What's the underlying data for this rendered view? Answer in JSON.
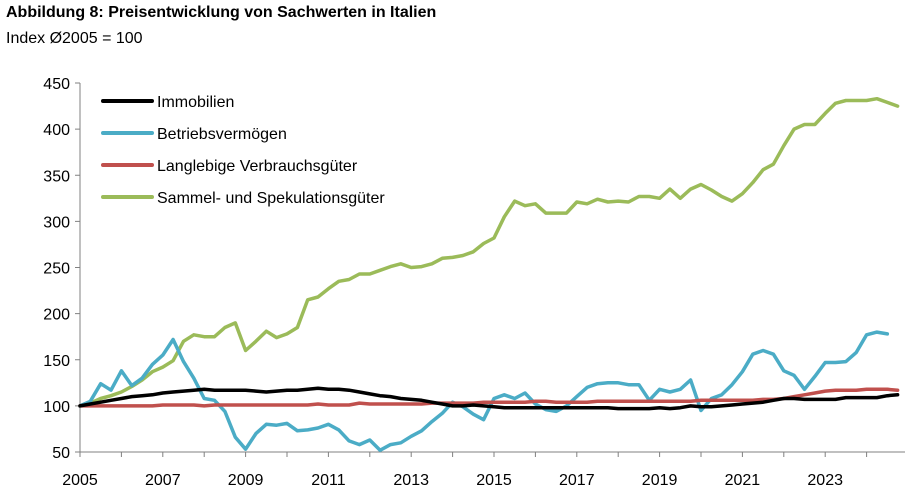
{
  "title": "Abbildung 8: Preisentwicklung von Sachwerten in Italien",
  "subtitle": "Index Ø2005 = 100",
  "chart_data": {
    "type": "line",
    "title": "Abbildung 8: Preisentwicklung von Sachwerten in Italien",
    "subtitle": "Index Ø2005 = 100",
    "xlabel": "",
    "ylabel": "",
    "xlim": [
      2005,
      2024.75
    ],
    "ylim": [
      50,
      450
    ],
    "grid": false,
    "legend_position": "top-left",
    "x_ticks": [
      "2005",
      "2007",
      "2009",
      "2011",
      "2013",
      "2015",
      "2017",
      "2019",
      "2021",
      "2023"
    ],
    "y_ticks": [
      "50",
      "100",
      "150",
      "200",
      "250",
      "300",
      "350",
      "400",
      "450"
    ],
    "x_step": 0.25,
    "series": [
      {
        "name": "Immobilien",
        "color": "#000000",
        "values": [
          100,
          102,
          104,
          106,
          108,
          110,
          111,
          112,
          114,
          115,
          116,
          117,
          118,
          117,
          117,
          117,
          117,
          116,
          115,
          116,
          117,
          117,
          118,
          119,
          118,
          118,
          117,
          115,
          113,
          111,
          110,
          108,
          107,
          106,
          104,
          102,
          100,
          100,
          101,
          100,
          99,
          98,
          98,
          98,
          98,
          98,
          98,
          98,
          98,
          98,
          98,
          98,
          97,
          97,
          97,
          97,
          98,
          97,
          98,
          100,
          99,
          99,
          100,
          101,
          102,
          103,
          104,
          106,
          108,
          108,
          107,
          107,
          107,
          107,
          109,
          109,
          109,
          109,
          111,
          112
        ]
      },
      {
        "name": "Betriebsvermögen",
        "color": "#4bacc6",
        "values": [
          100,
          105,
          124,
          117,
          138,
          122,
          130,
          145,
          155,
          172,
          148,
          130,
          108,
          106,
          94,
          66,
          53,
          70,
          80,
          79,
          81,
          73,
          74,
          76,
          80,
          74,
          62,
          58,
          63,
          52,
          58,
          60,
          67,
          73,
          83,
          92,
          104,
          99,
          91,
          85,
          108,
          112,
          108,
          114,
          102,
          96,
          94,
          100,
          110,
          120,
          124,
          125,
          125,
          123,
          123,
          106,
          118,
          115,
          118,
          128,
          95,
          108,
          112,
          123,
          137,
          156,
          160,
          156,
          138,
          133,
          118,
          132,
          147,
          147,
          148,
          158,
          177,
          180,
          178
        ]
      },
      {
        "name": "Langlebige Verbrauchsgüter",
        "color": "#c0504d",
        "values": [
          100,
          100,
          100,
          100,
          100,
          100,
          100,
          100,
          101,
          101,
          101,
          101,
          100,
          101,
          101,
          101,
          101,
          101,
          101,
          101,
          101,
          101,
          101,
          102,
          101,
          101,
          101,
          103,
          102,
          102,
          102,
          102,
          102,
          102,
          103,
          103,
          103,
          103,
          103,
          104,
          104,
          104,
          104,
          104,
          105,
          105,
          104,
          104,
          104,
          104,
          105,
          105,
          105,
          105,
          105,
          105,
          105,
          105,
          105,
          105,
          106,
          106,
          106,
          106,
          106,
          106,
          107,
          107,
          108,
          110,
          112,
          114,
          116,
          117,
          117,
          117,
          118,
          118,
          118,
          117
        ]
      },
      {
        "name": "Sammel- und Spekulationsgüter",
        "color": "#9bbb59",
        "values": [
          100,
          103,
          108,
          111,
          115,
          121,
          128,
          137,
          142,
          149,
          170,
          177,
          175,
          175,
          185,
          190,
          160,
          170,
          181,
          174,
          178,
          185,
          215,
          218,
          227,
          235,
          237,
          243,
          243,
          247,
          251,
          254,
          250,
          251,
          254,
          260,
          261,
          263,
          267,
          276,
          282,
          305,
          322,
          317,
          319,
          309,
          309,
          309,
          321,
          319,
          324,
          321,
          322,
          321,
          327,
          327,
          325,
          335,
          325,
          335,
          340,
          334,
          327,
          322,
          330,
          342,
          356,
          362,
          382,
          400,
          405,
          405,
          417,
          428,
          431,
          431,
          431,
          433,
          429,
          425
        ]
      }
    ]
  }
}
